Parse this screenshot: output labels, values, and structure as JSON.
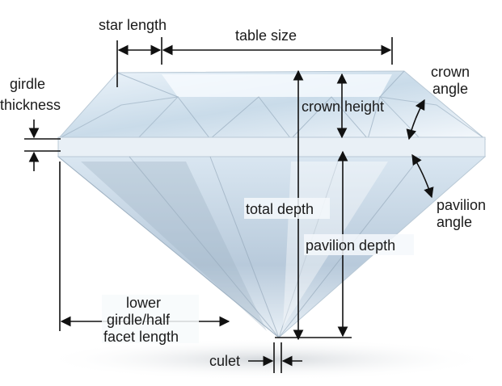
{
  "labels": {
    "star_length": "star length",
    "table_size": "table size",
    "girdle_thickness_1": "girdle",
    "girdle_thickness_2": "thickness",
    "crown_angle_1": "crown",
    "crown_angle_2": "angle",
    "crown_height": "crown height",
    "total_depth": "total depth",
    "pavilion_angle_1": "pavilion",
    "pavilion_angle_2": "angle",
    "pavilion_depth": "pavilion depth",
    "lower_girdle_1": "lower",
    "lower_girdle_2": "girdle/half",
    "lower_girdle_3": "facet length",
    "culet": "culet"
  }
}
